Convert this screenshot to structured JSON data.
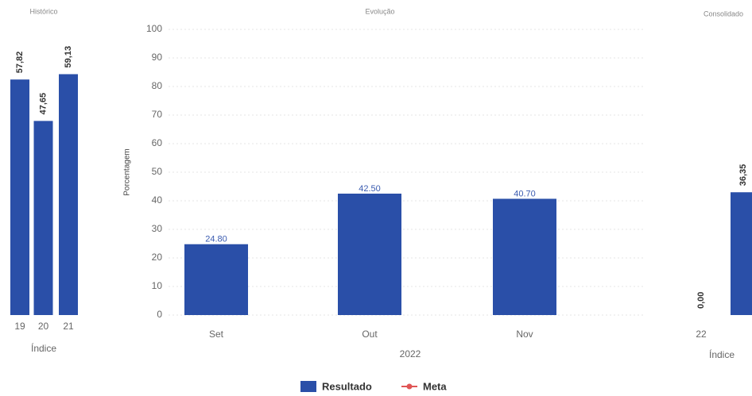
{
  "chart_data": [
    {
      "type": "bar",
      "title": "Histórico",
      "xlabel": "Índice",
      "categories": [
        "19",
        "20",
        "21"
      ],
      "values": [
        57.82,
        47.65,
        59.13
      ],
      "value_labels": [
        "57,82",
        "47,65",
        "59,13"
      ],
      "color": "#2a4fa8",
      "ylim": [
        0,
        60
      ]
    },
    {
      "type": "bar",
      "title": "Evolução",
      "xlabel": "2022",
      "ylabel": "Porcentagem",
      "categories": [
        "Set",
        "Out",
        "Nov"
      ],
      "series": [
        {
          "name": "Resultado",
          "color": "#2a4fa8",
          "values": [
            24.8,
            42.5,
            40.7
          ],
          "value_labels": [
            "24.80",
            "42.50",
            "40.70"
          ]
        },
        {
          "name": "Meta",
          "color": "#e05555",
          "values": [
            null,
            null,
            null
          ]
        }
      ],
      "ylim": [
        0,
        100
      ],
      "yticks": [
        0,
        10,
        20,
        30,
        40,
        50,
        60,
        70,
        80,
        90,
        100
      ],
      "grid": true,
      "legend": "bottom"
    },
    {
      "type": "bar",
      "title": "Consolidado",
      "xlabel": "Índice",
      "categories": [
        "22",
        null
      ],
      "values": [
        0,
        36.35
      ],
      "value_labels": [
        "0,00",
        "36,35"
      ],
      "color": "#2a4fa8",
      "ylim": [
        0,
        70
      ]
    }
  ]
}
